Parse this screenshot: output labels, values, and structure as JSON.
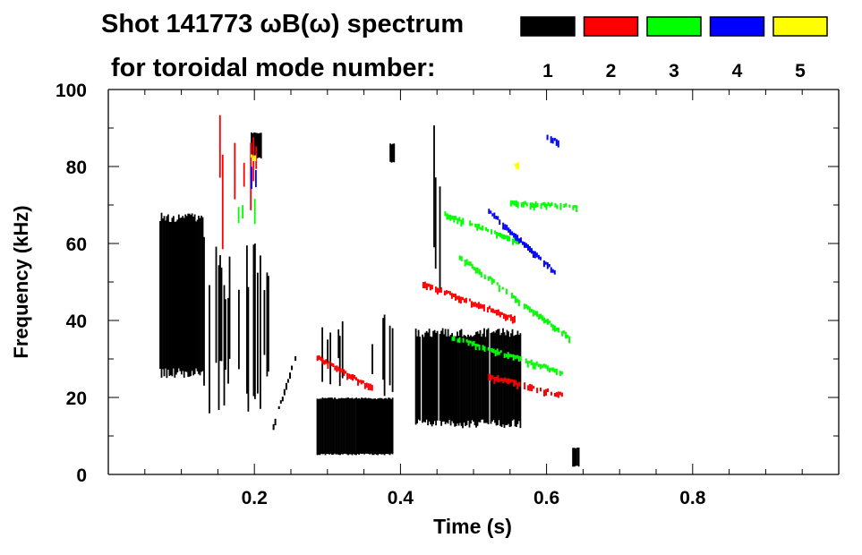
{
  "chart_data": {
    "type": "heatmap",
    "title": "Shot 141773 ωB(ω) spectrum",
    "subtitle": "for toroidal mode number:",
    "xlabel": "Time (s)",
    "ylabel": "Frequency (kHz)",
    "xlim": [
      0,
      1.0
    ],
    "ylim": [
      0,
      100
    ],
    "xticks": [
      0.2,
      0.4,
      0.6,
      0.8
    ],
    "xtick_labels": [
      "0.2",
      "0.4",
      "0.6",
      "0.8"
    ],
    "yticks": [
      0,
      20,
      40,
      60,
      80,
      100
    ],
    "ytick_labels": [
      "0",
      "20",
      "40",
      "60",
      "80",
      "100"
    ],
    "legend": [
      {
        "label": "1",
        "color": "#000000"
      },
      {
        "label": "2",
        "color": "#ff0000"
      },
      {
        "label": "3",
        "color": "#00ff00"
      },
      {
        "label": "4",
        "color": "#0000ff"
      },
      {
        "label": "5",
        "color": "#ffff00"
      }
    ],
    "legend_placement": "top-right",
    "features": [
      {
        "mode": 1,
        "kind": "blob",
        "t": [
          0.07,
          0.13
        ],
        "f": [
          25,
          68
        ],
        "density": 0.9
      },
      {
        "mode": 1,
        "kind": "blob",
        "t": [
          0.13,
          0.22
        ],
        "f": [
          15,
          62
        ],
        "density": 0.35
      },
      {
        "mode": 1,
        "kind": "blob",
        "t": [
          0.195,
          0.21
        ],
        "f": [
          82,
          89
        ],
        "density": 0.9
      },
      {
        "mode": 1,
        "kind": "blob",
        "t": [
          0.285,
          0.39
        ],
        "f": [
          5,
          20
        ],
        "density": 0.95
      },
      {
        "mode": 1,
        "kind": "blob",
        "t": [
          0.29,
          0.39
        ],
        "f": [
          20,
          45
        ],
        "density": 0.12
      },
      {
        "mode": 1,
        "kind": "blob",
        "t": [
          0.385,
          0.392
        ],
        "f": [
          81,
          86
        ],
        "density": 0.9
      },
      {
        "mode": 1,
        "kind": "blob",
        "t": [
          0.42,
          0.565
        ],
        "f": [
          12,
          38
        ],
        "density": 0.85
      },
      {
        "mode": 1,
        "kind": "blob",
        "t": [
          0.445,
          0.455
        ],
        "f": [
          40,
          95
        ],
        "density": 0.3
      },
      {
        "mode": 1,
        "kind": "blob",
        "t": [
          0.635,
          0.645
        ],
        "f": [
          2,
          7
        ],
        "density": 0.9
      },
      {
        "mode": 1,
        "kind": "line",
        "t": [
          0.225,
          0.255
        ],
        "f": [
          12,
          30
        ]
      },
      {
        "mode": 2,
        "kind": "line",
        "t": [
          0.43,
          0.555
        ],
        "f": [
          49,
          40
        ]
      },
      {
        "mode": 2,
        "kind": "line",
        "t": [
          0.285,
          0.36
        ],
        "f": [
          30,
          22
        ]
      },
      {
        "mode": 2,
        "kind": "line",
        "t": [
          0.52,
          0.62
        ],
        "f": [
          25,
          20
        ]
      },
      {
        "mode": 2,
        "kind": "blob",
        "t": [
          0.15,
          0.205
        ],
        "f": [
          58,
          100
        ],
        "density": 0.15
      },
      {
        "mode": 3,
        "kind": "line",
        "t": [
          0.55,
          0.64
        ],
        "f": [
          70,
          69
        ]
      },
      {
        "mode": 3,
        "kind": "line",
        "t": [
          0.48,
          0.63
        ],
        "f": [
          56,
          35
        ]
      },
      {
        "mode": 3,
        "kind": "line",
        "t": [
          0.47,
          0.62
        ],
        "f": [
          35,
          26
        ]
      },
      {
        "mode": 3,
        "kind": "line",
        "t": [
          0.46,
          0.56
        ],
        "f": [
          67,
          60
        ]
      },
      {
        "mode": 3,
        "kind": "blob",
        "t": [
          0.17,
          0.205
        ],
        "f": [
          60,
          73
        ],
        "density": 0.15
      },
      {
        "mode": 4,
        "kind": "line",
        "t": [
          0.52,
          0.61
        ],
        "f": [
          68,
          52
        ]
      },
      {
        "mode": 4,
        "kind": "blob",
        "t": [
          0.195,
          0.205
        ],
        "f": [
          74,
          80
        ],
        "density": 0.3
      },
      {
        "mode": 4,
        "kind": "line",
        "t": [
          0.6,
          0.615
        ],
        "f": [
          87,
          86
        ]
      },
      {
        "mode": 5,
        "kind": "line",
        "t": [
          0.556,
          0.56
        ],
        "f": [
          80,
          80
        ]
      },
      {
        "mode": 5,
        "kind": "line",
        "t": [
          0.195,
          0.2
        ],
        "f": [
          82,
          82
        ]
      }
    ]
  }
}
